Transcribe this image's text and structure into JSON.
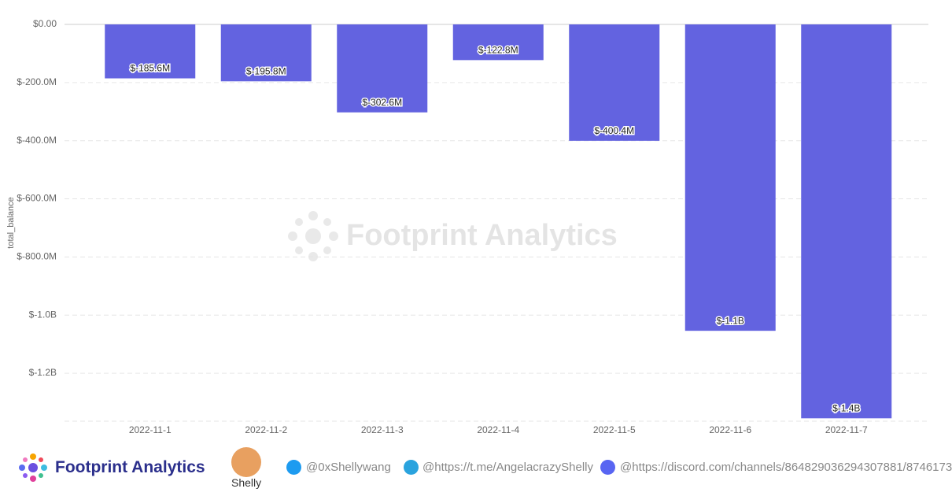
{
  "chart_data": {
    "type": "bar",
    "y_label": "total_balance",
    "watermark": "Footprint Analytics",
    "categories": [
      "2022-11-1",
      "2022-11-2",
      "2022-11-3",
      "2022-11-4",
      "2022-11-5",
      "2022-11-6",
      "2022-11-7"
    ],
    "values": [
      -185600000,
      -195800000,
      -302600000,
      -122800000,
      -400400000,
      -1054000000,
      -1355000000
    ],
    "value_labels": [
      "$-185.6M",
      "$-195.8M",
      "$-302.6M",
      "$-122.8M",
      "$-400.4M",
      "$-1.1B",
      "$-1.4B"
    ],
    "color": "#6363e0",
    "ylim": [
      -1365000000,
      0
    ],
    "yticks": [
      {
        "value": 0,
        "label": "$0.00"
      },
      {
        "value": -200000000,
        "label": "$-200.0M"
      },
      {
        "value": -400000000,
        "label": "$-400.0M"
      },
      {
        "value": -600000000,
        "label": "$-600.0M"
      },
      {
        "value": -800000000,
        "label": "$-800.0M"
      },
      {
        "value": -1000000000,
        "label": "$-1.0B"
      },
      {
        "value": -1200000000,
        "label": "$-1.2B"
      }
    ],
    "grid": true
  },
  "footer": {
    "brand": "Footprint Analytics",
    "author": "Shelly",
    "twitter": "@0xShellywang",
    "telegram": "@https://t.me/AngelacrazyShelly",
    "discord": "@https://discord.com/channels/864829036294307881/8746173"
  }
}
